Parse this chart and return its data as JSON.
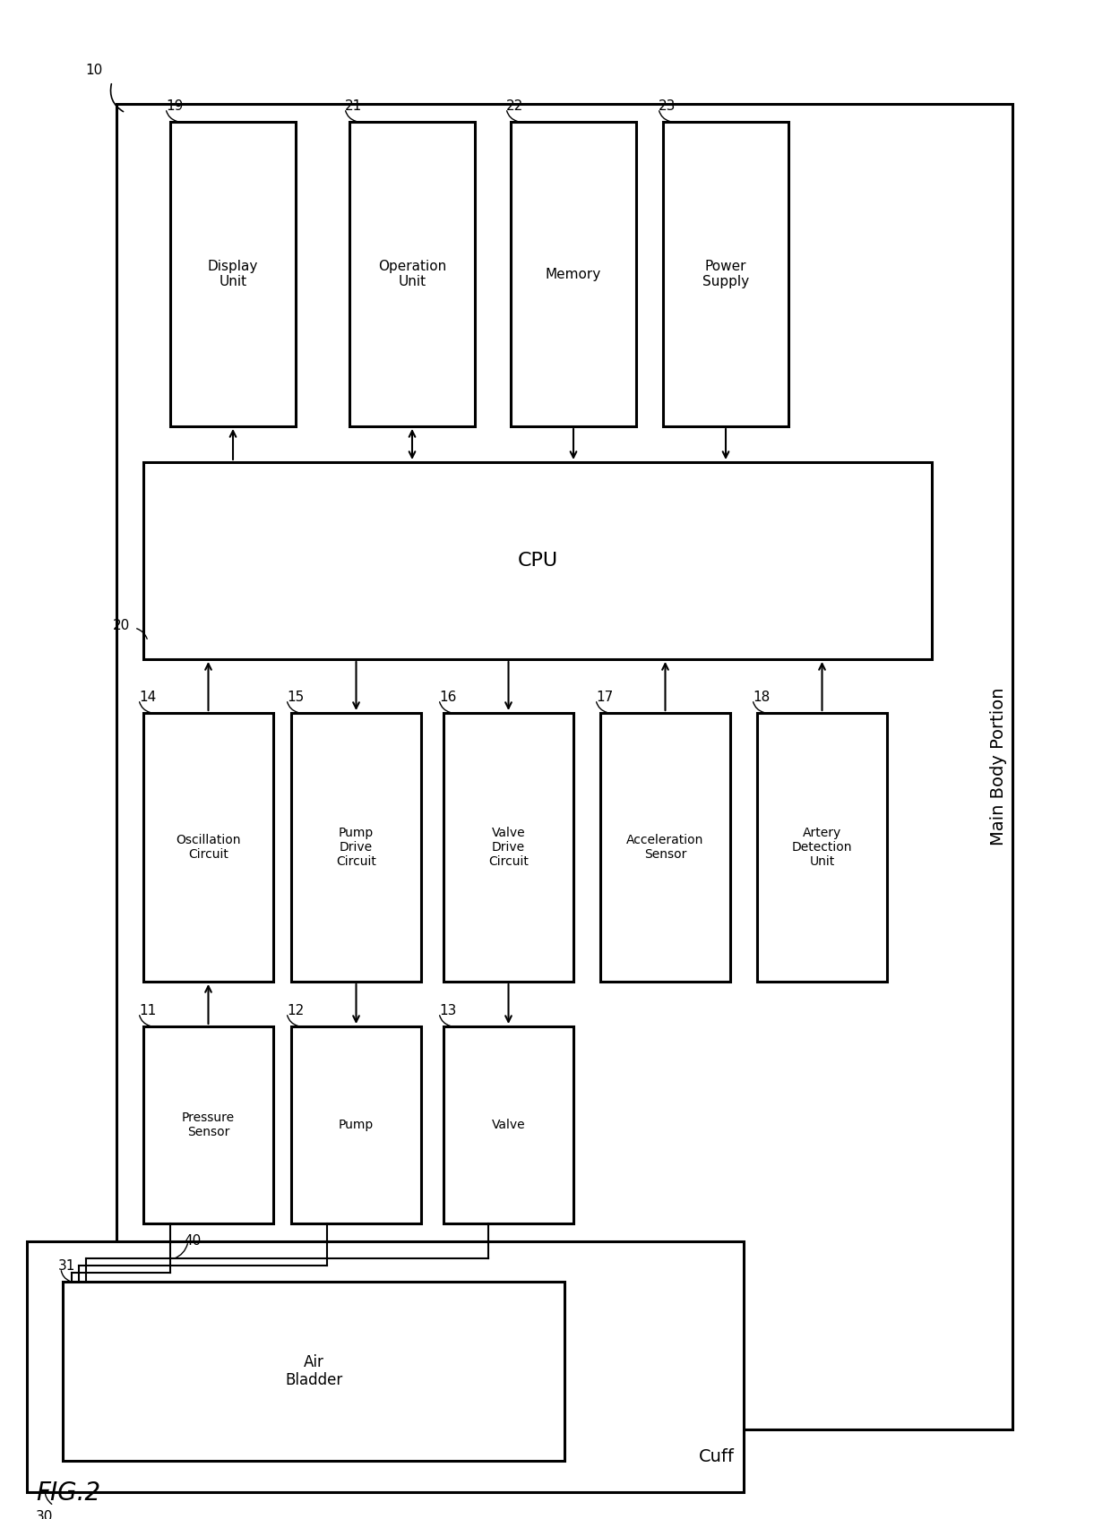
{
  "fig_width": 12.4,
  "fig_height": 16.96,
  "bg_color": "#ffffff",
  "title": "FIG.2",
  "lw": 1.5,
  "lw_thick": 2.2,
  "ec": "#000000",
  "fc": "#ffffff",
  "fontsize_small": 10,
  "fontsize_med": 11,
  "fontsize_large": 14,
  "fontsize_title": 20,
  "top_boxes": [
    {
      "label": "Display\nUnit",
      "ref": "19"
    },
    {
      "label": "Operation\nUnit",
      "ref": "21"
    },
    {
      "label": "Memory",
      "ref": "22"
    },
    {
      "label": "Power\nSupply",
      "ref": "23"
    }
  ],
  "mid_boxes": [
    {
      "label": "Oscillation\nCircuit",
      "ref": "14"
    },
    {
      "label": "Pump\nDrive\nCircuit",
      "ref": "15"
    },
    {
      "label": "Valve\nDrive\nCircuit",
      "ref": "16"
    },
    {
      "label": "Acceleration\nSensor",
      "ref": "17"
    },
    {
      "label": "Artery\nDetection\nUnit",
      "ref": "18"
    }
  ],
  "bot_boxes": [
    {
      "label": "Pressure\nSensor",
      "ref": "11"
    },
    {
      "label": "Pump",
      "ref": "12"
    },
    {
      "label": "Valve",
      "ref": "13"
    }
  ],
  "cpu_label": "CPU",
  "cpu_ref": "20",
  "air_bladder_label": "Air\nBladder",
  "air_bladder_ref": "31",
  "main_body_label": "Main Body Portion",
  "main_body_ref": "10",
  "cuff_label": "Cuff",
  "cuff_ref": "30",
  "tube_ref": "40"
}
